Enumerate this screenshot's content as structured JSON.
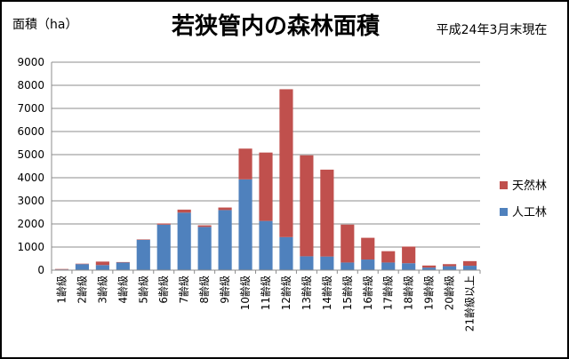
{
  "chart_data": {
    "type": "bar",
    "stacked": true,
    "title": "若狭管内の森林面積",
    "subtitle": "平成24年3月末現在",
    "ylabel": "面積（ha）",
    "xlabel": "",
    "ylim": [
      0,
      9000
    ],
    "yticks": [
      0,
      1000,
      2000,
      3000,
      4000,
      5000,
      6000,
      7000,
      8000,
      9000
    ],
    "grid": true,
    "legend_position": "right",
    "categories": [
      "1齢級",
      "2齢級",
      "3齢級",
      "4齢級",
      "5齢級",
      "6齢級",
      "7齢級",
      "8齢級",
      "9齢級",
      "10齢級",
      "11齢級",
      "12齢級",
      "13齢級",
      "14齢級",
      "15齢級",
      "16齢級",
      "17齢級",
      "18齢級",
      "19齢級",
      "20齢級",
      "21齢級以上"
    ],
    "series": [
      {
        "name": "人工林",
        "color": "#4F81BD",
        "values": [
          30,
          260,
          220,
          330,
          1310,
          1970,
          2490,
          1870,
          2600,
          3930,
          2130,
          1430,
          600,
          590,
          330,
          460,
          330,
          300,
          110,
          170,
          190
        ]
      },
      {
        "name": "天然林",
        "color": "#C0504D",
        "values": [
          20,
          20,
          150,
          20,
          20,
          50,
          130,
          70,
          110,
          1330,
          2960,
          6400,
          4370,
          3760,
          1640,
          940,
          490,
          720,
          90,
          90,
          200
        ]
      }
    ]
  }
}
